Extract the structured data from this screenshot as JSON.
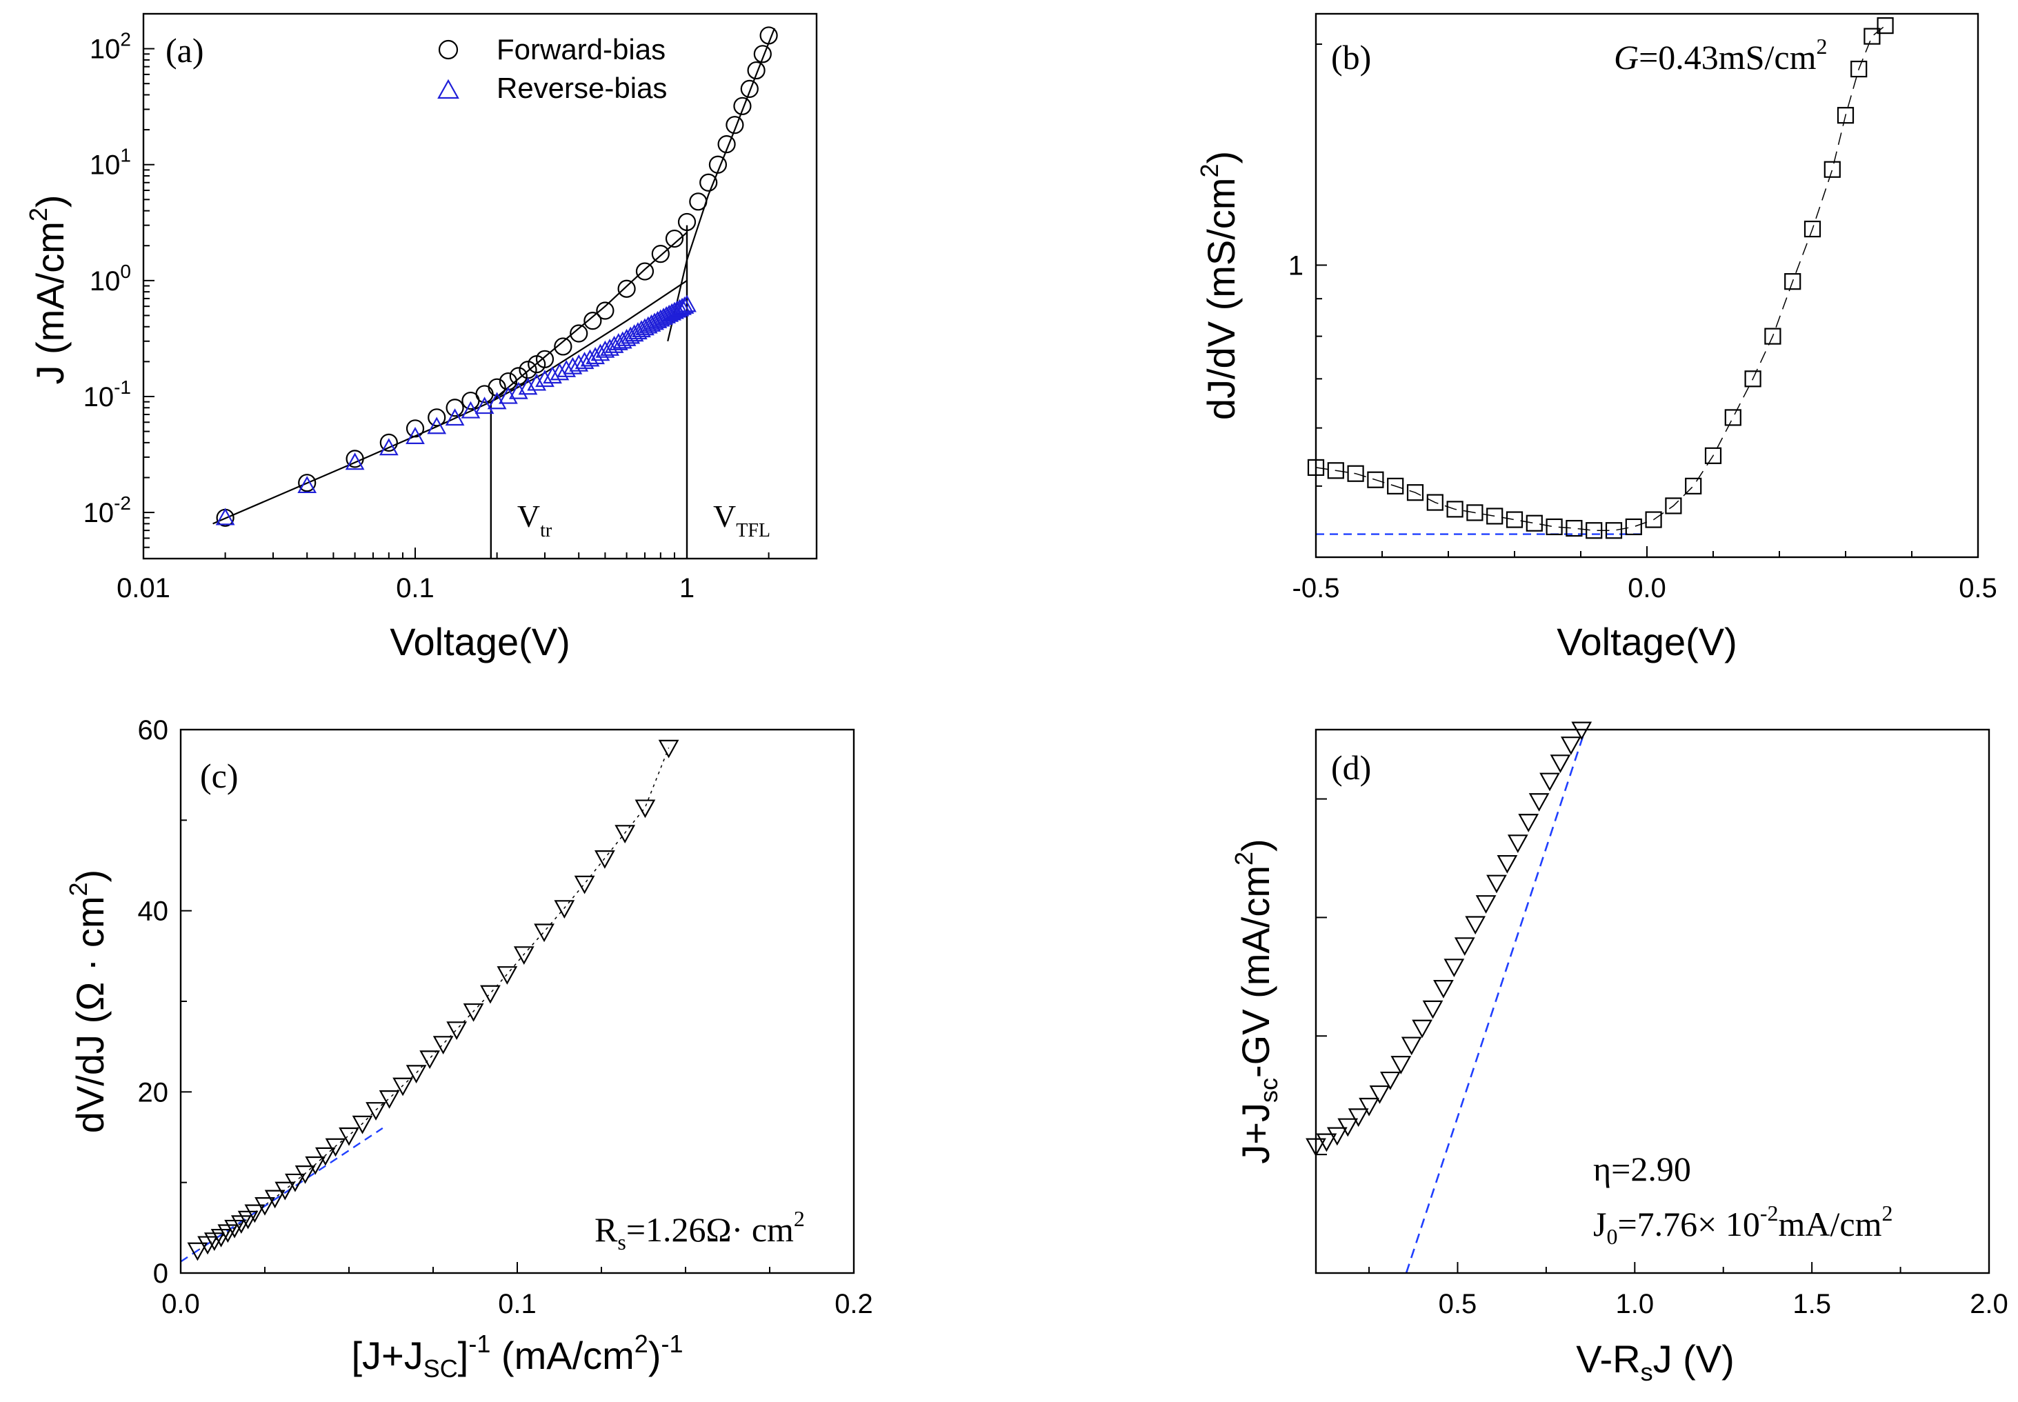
{
  "colors": {
    "black": "#000000",
    "blue": "#1f1fd8",
    "dash_blue": "#1f3fff"
  },
  "chart_data": [
    {
      "id": "a",
      "panel_label": "(a)",
      "type": "scatter",
      "xscale": "log",
      "yscale": "log",
      "xlabel": "Voltage(V)",
      "ylabel": "J (mA/cm2)",
      "ylabel_parts": [
        "J (mA/cm",
        "2",
        ")"
      ],
      "xlim": [
        0.01,
        3
      ],
      "ylim": [
        0.004,
        200
      ],
      "xticks": [
        0.01,
        0.1,
        1
      ],
      "xtick_labels": [
        "0.01",
        "0.1",
        "1"
      ],
      "yticks": [
        0.01,
        0.1,
        1,
        10,
        100
      ],
      "ytick_labels": [
        [
          "10",
          "-2"
        ],
        [
          "10",
          "-1"
        ],
        [
          "10",
          "0"
        ],
        [
          "10",
          "1"
        ],
        [
          "10",
          "2"
        ]
      ],
      "legend": {
        "placement": "top-center",
        "entries": [
          {
            "label": "Forward-bias",
            "marker": "circle",
            "color": "#000000"
          },
          {
            "label": "Reverse-bias",
            "marker": "triangle",
            "color": "#1f1fd8"
          }
        ]
      },
      "series": [
        {
          "name": "Forward-bias",
          "marker": "circle",
          "x": [
            0.02,
            0.04,
            0.06,
            0.08,
            0.1,
            0.12,
            0.14,
            0.16,
            0.18,
            0.2,
            0.22,
            0.24,
            0.26,
            0.28,
            0.3,
            0.35,
            0.4,
            0.45,
            0.5,
            0.6,
            0.7,
            0.8,
            0.9,
            1.0,
            1.1,
            1.2,
            1.3,
            1.4,
            1.5,
            1.6,
            1.7,
            1.8,
            1.9,
            2.0
          ],
          "y": [
            0.009,
            0.018,
            0.029,
            0.04,
            0.053,
            0.066,
            0.08,
            0.092,
            0.105,
            0.12,
            0.135,
            0.15,
            0.17,
            0.19,
            0.21,
            0.27,
            0.35,
            0.45,
            0.55,
            0.85,
            1.2,
            1.7,
            2.3,
            3.2,
            4.8,
            7,
            10,
            15,
            22,
            32,
            45,
            65,
            90,
            130
          ]
        },
        {
          "name": "Reverse-bias",
          "marker": "triangle",
          "x": [
            0.02,
            0.04,
            0.06,
            0.08,
            0.1,
            0.12,
            0.14,
            0.16,
            0.18,
            0.2,
            0.22,
            0.24,
            0.26,
            0.28,
            0.3,
            0.32,
            0.34,
            0.36,
            0.38,
            0.4,
            0.42,
            0.44,
            0.46,
            0.48,
            0.5,
            0.52,
            0.54,
            0.56,
            0.58,
            0.6,
            0.62,
            0.64,
            0.66,
            0.68,
            0.7,
            0.72,
            0.74,
            0.76,
            0.78,
            0.8,
            0.82,
            0.84,
            0.86,
            0.88,
            0.9,
            0.92,
            0.94,
            0.96,
            0.98,
            1.0
          ],
          "y": [
            0.009,
            0.017,
            0.027,
            0.036,
            0.045,
            0.055,
            0.065,
            0.075,
            0.082,
            0.09,
            0.1,
            0.11,
            0.12,
            0.13,
            0.14,
            0.15,
            0.16,
            0.17,
            0.18,
            0.19,
            0.2,
            0.21,
            0.22,
            0.235,
            0.25,
            0.26,
            0.275,
            0.29,
            0.3,
            0.315,
            0.33,
            0.345,
            0.36,
            0.375,
            0.39,
            0.405,
            0.42,
            0.435,
            0.45,
            0.465,
            0.48,
            0.495,
            0.51,
            0.525,
            0.54,
            0.555,
            0.57,
            0.585,
            0.6,
            0.62
          ]
        }
      ],
      "fit_lines": [
        {
          "x": [
            0.018,
            0.06,
            0.12,
            0.19,
            0.3,
            0.6,
            1.0
          ],
          "y": [
            0.008,
            0.027,
            0.055,
            0.09,
            0.16,
            0.45,
            1.0
          ]
        },
        {
          "x": [
            0.19,
            0.3,
            0.5,
            0.7,
            1.0
          ],
          "y": [
            0.09,
            0.22,
            0.6,
            1.25,
            2.6
          ]
        },
        {
          "x": [
            0.85,
            1.0,
            1.2,
            1.5,
            1.8,
            2.1
          ],
          "y": [
            0.3,
            1.5,
            5.5,
            20,
            60,
            150
          ]
        }
      ],
      "vlines": [
        {
          "x": 0.19,
          "y_top": 0.09,
          "label": "V",
          "sub": "tr"
        },
        {
          "x": 1.0,
          "y_top": 3.0,
          "label": "V",
          "sub": "TFL"
        }
      ]
    },
    {
      "id": "b",
      "panel_label": "(b)",
      "type": "scatter",
      "xscale": "linear",
      "yscale": "log",
      "xlabel": "Voltage(V)",
      "ylabel": "dJ/dV (mS/cm2)",
      "ylabel_parts": [
        "dJ/dV (mS/cm",
        "2",
        ")"
      ],
      "xlim": [
        -0.5,
        0.5
      ],
      "ylim": [
        0.4,
        2.2
      ],
      "xticks": [
        -0.5,
        0.0,
        0.5
      ],
      "xtick_labels": [
        "-0.5",
        "0.0",
        "0.5"
      ],
      "yticks": [
        1
      ],
      "ytick_labels": [
        "1"
      ],
      "annotation": {
        "italic": "G",
        "text": "=0.43mS/cm",
        "sup": "2"
      },
      "series": [
        {
          "name": "dJ/dV",
          "marker": "square",
          "x": [
            -0.5,
            -0.47,
            -0.44,
            -0.41,
            -0.38,
            -0.35,
            -0.32,
            -0.29,
            -0.26,
            -0.23,
            -0.2,
            -0.17,
            -0.14,
            -0.11,
            -0.08,
            -0.05,
            -0.02,
            0.01,
            0.04,
            0.07,
            0.1,
            0.13,
            0.16,
            0.19,
            0.22,
            0.25,
            0.28,
            0.3,
            0.32,
            0.34,
            0.36
          ],
          "y": [
            0.53,
            0.525,
            0.52,
            0.51,
            0.5,
            0.49,
            0.475,
            0.465,
            0.46,
            0.455,
            0.45,
            0.445,
            0.44,
            0.438,
            0.435,
            0.435,
            0.44,
            0.45,
            0.47,
            0.5,
            0.55,
            0.62,
            0.7,
            0.8,
            0.95,
            1.12,
            1.35,
            1.6,
            1.85,
            2.05,
            2.12
          ]
        }
      ],
      "fit_line": {
        "x": [
          -0.5,
          0.0
        ],
        "y": [
          0.43,
          0.43
        ],
        "style": "dashed"
      }
    },
    {
      "id": "c",
      "panel_label": "(c)",
      "type": "scatter",
      "xscale": "linear",
      "yscale": "linear",
      "xlabel_parts": [
        "[J+J",
        "SC",
        "]",
        "-1",
        "  (mA/cm",
        "2",
        ")",
        "-1"
      ],
      "xlabel": "[J+JSC]-1 (mA/cm2)-1",
      "ylabel": "dV/dJ (Ω · cm2)",
      "ylabel_parts": [
        "dV/dJ (Ω · cm",
        "2",
        ")"
      ],
      "xlim": [
        0.0,
        0.2
      ],
      "ylim": [
        0,
        60
      ],
      "xticks": [
        0.0,
        0.1,
        0.2
      ],
      "xtick_labels": [
        "0.0",
        "0.1",
        "0.2"
      ],
      "yticks": [
        0,
        20,
        40,
        60
      ],
      "ytick_labels": [
        "0",
        "20",
        "40",
        "60"
      ],
      "annotation": {
        "text": "R",
        "sub": "s",
        "rest": "=1.26Ω· cm",
        "sup": "2"
      },
      "series": [
        {
          "name": "dV/dJ",
          "marker": "triangle-down",
          "x": [
            0.005,
            0.008,
            0.01,
            0.012,
            0.014,
            0.016,
            0.018,
            0.02,
            0.022,
            0.025,
            0.028,
            0.031,
            0.034,
            0.037,
            0.04,
            0.043,
            0.046,
            0.05,
            0.054,
            0.058,
            0.062,
            0.066,
            0.07,
            0.074,
            0.078,
            0.082,
            0.087,
            0.092,
            0.097,
            0.102,
            0.108,
            0.114,
            0.12,
            0.126,
            0.132,
            0.138,
            0.145
          ],
          "y": [
            2.5,
            3.2,
            3.6,
            4.0,
            4.5,
            5.0,
            5.5,
            6.0,
            6.7,
            7.5,
            8.3,
            9.2,
            10.1,
            11.0,
            12.0,
            13.0,
            14.0,
            15.2,
            16.5,
            18.0,
            19.3,
            20.7,
            22.1,
            23.7,
            25.3,
            26.9,
            28.9,
            30.9,
            33.0,
            35.2,
            37.7,
            40.3,
            43.0,
            45.8,
            48.6,
            51.4,
            58.0
          ]
        }
      ],
      "fit_line": {
        "x": [
          0.0,
          0.06
        ],
        "y": [
          1.26,
          16.0
        ],
        "style": "dashed"
      }
    },
    {
      "id": "d",
      "panel_label": "(d)",
      "type": "scatter",
      "xscale": "linear",
      "yscale": "log",
      "xlabel": "V-RsJ (V)",
      "xlabel_parts": [
        "V-R",
        "s",
        "J (V)"
      ],
      "ylabel": "J+Jsc-GV (mA/cm2)",
      "ylabel_parts": [
        "J+J",
        "sc",
        "-GV  (mA/cm",
        "2",
        ")"
      ],
      "xlim": [
        0.1,
        2.0
      ],
      "ylim": [
        0.5,
        12
      ],
      "xticks": [
        0.5,
        1.0,
        1.5,
        2.0
      ],
      "xtick_labels": [
        "0.5",
        "1.0",
        "1.5",
        "2.0"
      ],
      "annotation": {
        "eta": "η=2.90",
        "j0": "J",
        "j0_sub": "0",
        "j0_rest": "=7.76×  10",
        "j0_sup": "-2",
        "j0_unit": "mA/cm",
        "j0_unit_sup": "2"
      },
      "series": [
        {
          "name": "J+Jsc-GV",
          "marker": "triangle-down",
          "x": [
            0.1,
            0.13,
            0.16,
            0.19,
            0.22,
            0.25,
            0.28,
            0.31,
            0.34,
            0.37,
            0.4,
            0.43,
            0.46,
            0.49,
            0.52,
            0.55,
            0.58,
            0.61,
            0.64,
            0.67,
            0.7,
            0.73,
            0.76,
            0.79,
            0.82,
            0.85
          ],
          "y": [
            1.05,
            1.08,
            1.12,
            1.18,
            1.25,
            1.33,
            1.43,
            1.55,
            1.7,
            1.9,
            2.1,
            2.35,
            2.65,
            3.0,
            3.4,
            3.85,
            4.35,
            4.9,
            5.5,
            6.2,
            7.0,
            7.9,
            8.9,
            9.9,
            11.0,
            12.0
          ]
        }
      ],
      "fit_line": {
        "x": [
          0.355,
          0.86
        ],
        "y": [
          0.5,
          12.0
        ],
        "style": "dashed"
      }
    }
  ]
}
